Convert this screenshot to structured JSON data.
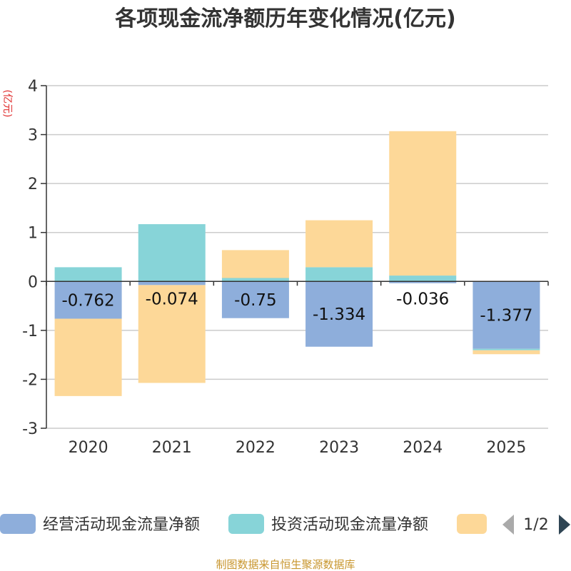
{
  "chart_data": {
    "type": "bar",
    "stacked": true,
    "title": "各项现金流净额历年变化情况(亿元)",
    "ylabel": "(亿元)",
    "xlabel": "",
    "ylim": [
      -3,
      4
    ],
    "yticks": [
      -3,
      -2,
      -1,
      0,
      1,
      2,
      3,
      4
    ],
    "grid": true,
    "categories": [
      "2020",
      "2021",
      "2022",
      "2023",
      "2024",
      "2025"
    ],
    "series": [
      {
        "name": "经营活动现金流量净额",
        "color": "#8eaedb",
        "values": [
          -0.762,
          -0.074,
          -0.75,
          -1.334,
          -0.036,
          -1.377
        ],
        "labels": [
          "-0.762",
          "-0.074",
          "-0.75",
          "-1.334",
          "-0.036",
          "-1.377"
        ]
      },
      {
        "name": "投资活动现金流量净额",
        "color": "#87d4d8",
        "values": [
          0.29,
          1.17,
          0.07,
          0.29,
          0.12,
          -0.03
        ]
      },
      {
        "name": "",
        "color": "#fdd898",
        "values": [
          -1.58,
          -2.0,
          0.57,
          0.96,
          2.95,
          -0.08
        ]
      }
    ],
    "legend_position": "bottom"
  },
  "legend": {
    "page_indicator": "1/2",
    "prev_icon": "triangle-left-icon",
    "next_icon": "triangle-right-icon"
  },
  "footer": {
    "source": "制图数据来自恒生聚源数据库"
  },
  "colors": {
    "axis": "#333333",
    "grid": "#cccccc",
    "title": "#333333",
    "ylabel": "#e03030",
    "footer": "#c8962e",
    "pager_disabled": "#aaaaaa",
    "pager_active": "#2f4554"
  }
}
